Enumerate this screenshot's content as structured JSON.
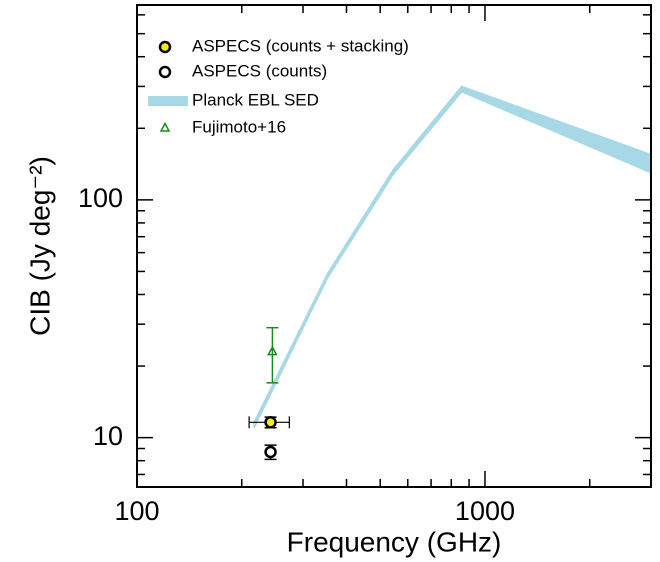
{
  "chart_data": {
    "type": "scatter",
    "xlabel": "Frequency (GHz)",
    "ylabel": "CIB (Jy deg⁻²)",
    "xscale": "log",
    "yscale": "log",
    "xlim": [
      100,
      3000
    ],
    "ylim": [
      6.2,
      660
    ],
    "xticks": [
      100,
      1000
    ],
    "yticks": [
      10,
      100
    ],
    "xminorticks": [
      200,
      300,
      400,
      500,
      600,
      700,
      800,
      900,
      2000,
      3000
    ],
    "yminorticks": [
      7,
      8,
      9,
      20,
      30,
      40,
      50,
      60,
      70,
      80,
      90,
      200,
      300,
      400,
      500,
      600
    ],
    "legend": "upper left",
    "series": [
      {
        "name": "ASPECS (counts + stacking)",
        "kind": "errorbar",
        "marker": "circle",
        "color": "#ffee00",
        "x": [
          242
        ],
        "values": [
          11.6
        ],
        "xerr": [
          32
        ],
        "yerr": [
          0.6
        ]
      },
      {
        "name": "ASPECS (counts)",
        "kind": "errorbar",
        "marker": "circle",
        "color": "#ffffff",
        "x": [
          242
        ],
        "values": [
          8.7
        ],
        "yerr": [
          0.6
        ]
      },
      {
        "name": "Planck EBL SED",
        "kind": "band",
        "color": "#a6d8e6",
        "x": [
          217,
          353,
          545,
          857,
          3000
        ],
        "lower": [
          11,
          47,
          128,
          285,
          130
        ],
        "upper": [
          11.6,
          49,
          134,
          300,
          155
        ]
      },
      {
        "name": "Fujimoto+16",
        "kind": "errorbar",
        "marker": "triangle",
        "color": "#1a8a1a",
        "x": [
          245
        ],
        "values": [
          23
        ],
        "yerr": [
          6
        ]
      }
    ]
  }
}
